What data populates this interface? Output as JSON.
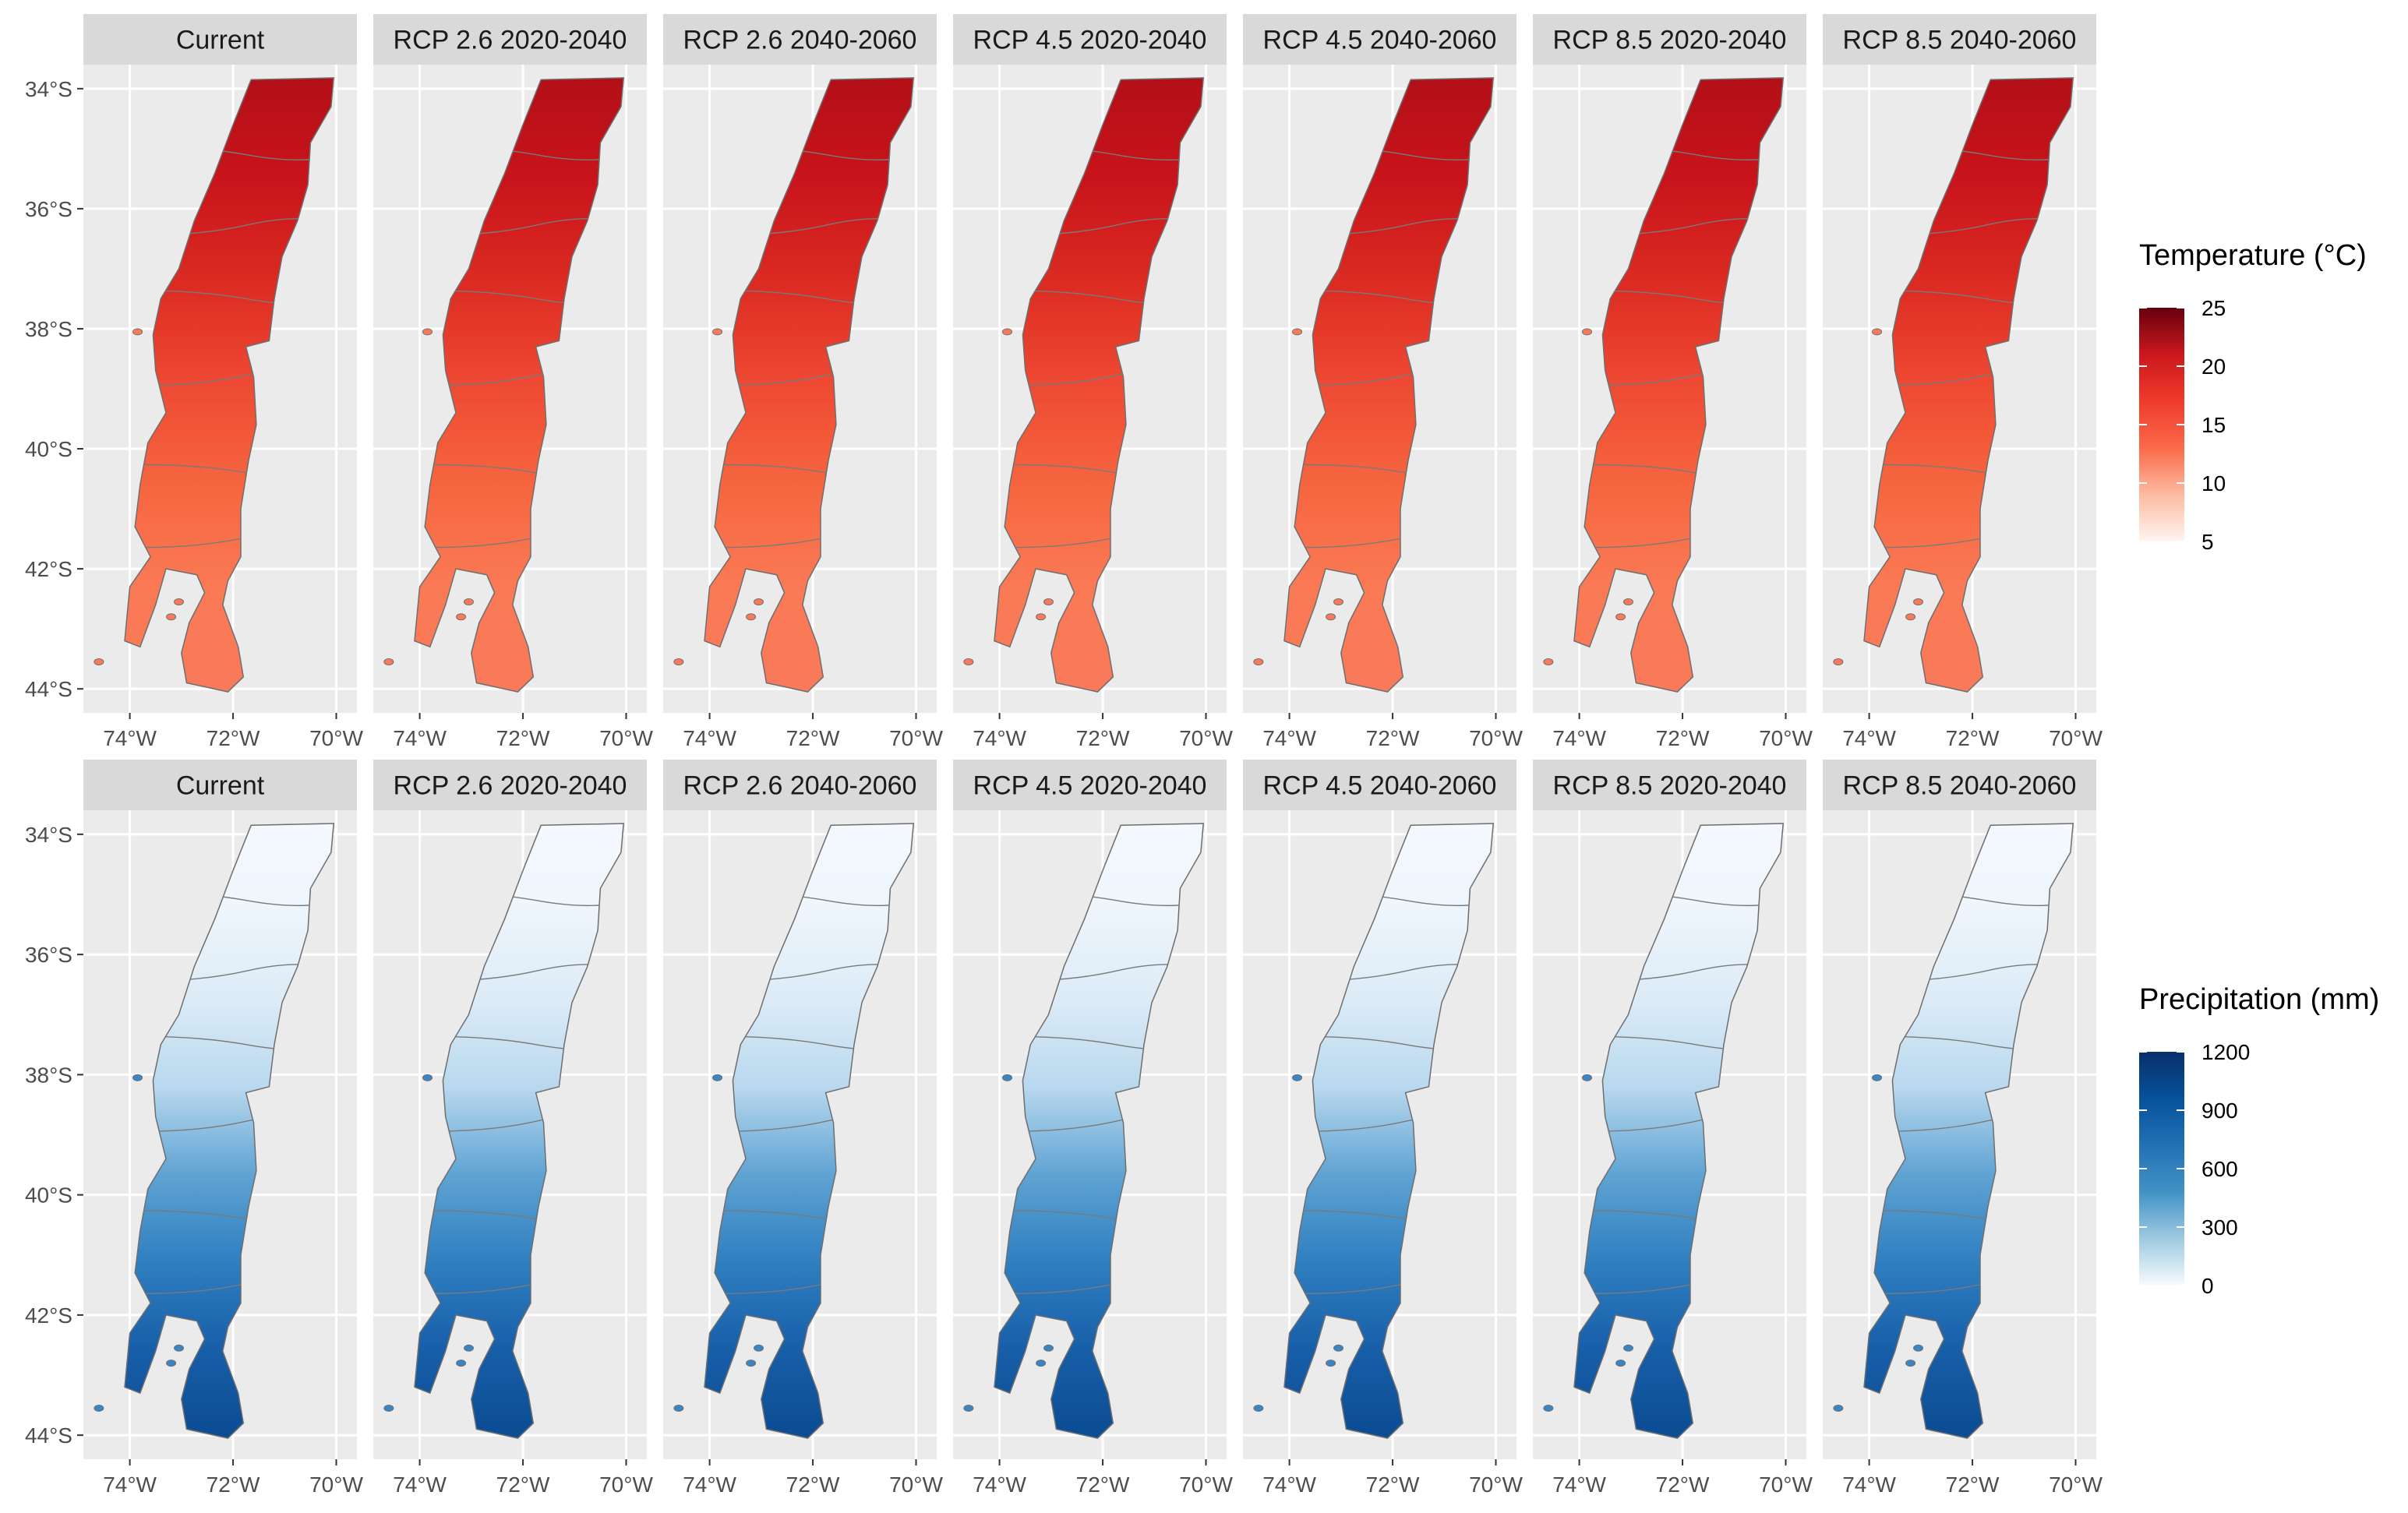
{
  "panel_titles": [
    "Current",
    "RCP 2.6 2020-2040",
    "RCP 2.6 2040-2060",
    "RCP 4.5 2020-2040",
    "RCP 4.5 2040-2060",
    "RCP 8.5 2020-2040",
    "RCP 8.5 2040-2060"
  ],
  "axes": {
    "y_ticks": [
      "34°S",
      "36°S",
      "38°S",
      "40°S",
      "42°S",
      "44°S"
    ],
    "y_values": [
      -34,
      -36,
      -38,
      -40,
      -42,
      -44
    ],
    "x_ticks": [
      "74°W",
      "72°W",
      "70°W"
    ],
    "x_values": [
      -74,
      -72,
      -70
    ],
    "lat_range": [
      -44.4,
      -33.6
    ],
    "lon_range": [
      -74.9,
      -69.6
    ]
  },
  "legends": {
    "temperature": {
      "title": "Temperature (°C)",
      "ticks": [
        "25",
        "20",
        "15",
        "10",
        "5"
      ],
      "values": [
        25,
        20,
        15,
        10,
        5
      ],
      "range": [
        5,
        25
      ],
      "colors": [
        "#fff5f0",
        "#fcbba1",
        "#fb6a4a",
        "#ef3b2c",
        "#cb181d",
        "#67000d"
      ]
    },
    "precipitation": {
      "title": "Precipitation (mm)",
      "ticks": [
        "1200",
        "900",
        "600",
        "300",
        "0"
      ],
      "values": [
        1200,
        900,
        600,
        300,
        0
      ],
      "range": [
        0,
        1200
      ],
      "colors": [
        "#f7fbff",
        "#9ecae1",
        "#4292c6",
        "#2171b5",
        "#08519c",
        "#08306b"
      ]
    }
  },
  "panel_colors": {
    "background": "#ebebeb",
    "strip": "#d9d9d9",
    "grid": "#ffffff",
    "border": "#888888"
  }
}
